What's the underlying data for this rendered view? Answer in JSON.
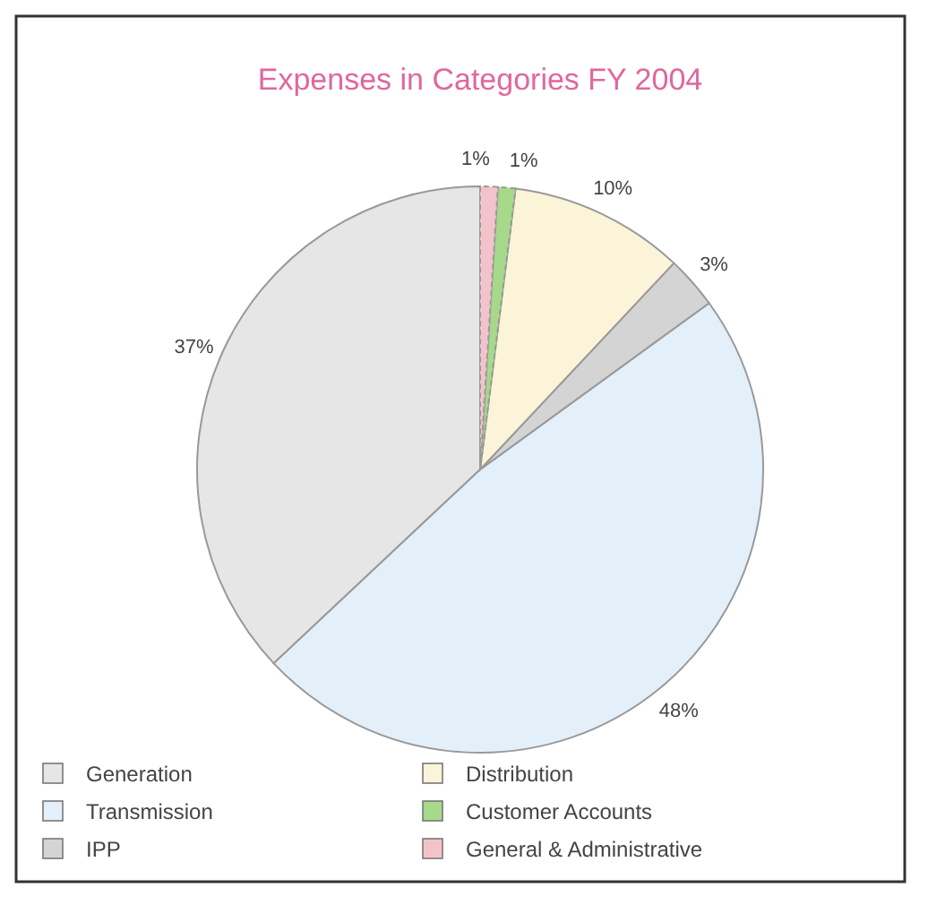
{
  "chart_data": {
    "type": "pie",
    "title": "Expenses in Categories FY 2004",
    "categories": [
      "Generation",
      "Transmission",
      "IPP",
      "Distribution",
      "Customer Accounts",
      "General & Administrative"
    ],
    "values": [
      37,
      48,
      3,
      10,
      1,
      1
    ],
    "colors": [
      "#e6e6e6",
      "#e4f0f9",
      "#d4d4d4",
      "#fbf4d8",
      "#a6d98a",
      "#f3c3cc"
    ],
    "value_labels": [
      "37%",
      "48%",
      "3%",
      "10%",
      "1%",
      "1%"
    ],
    "legend": "bottom"
  }
}
